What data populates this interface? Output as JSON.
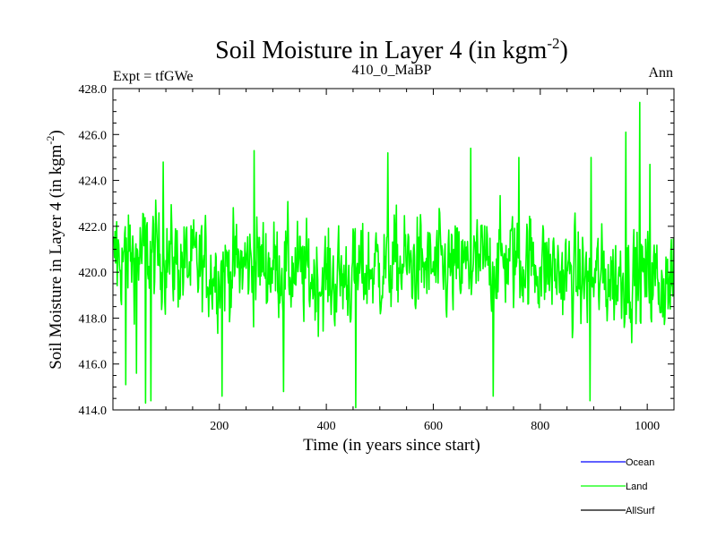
{
  "chart_data": {
    "type": "line",
    "title": "Soil Moisture in Layer 4 (in kgm",
    "title_sup": "-2",
    "title_end": ")",
    "subtitle_left": "Expt = tfGWe",
    "subtitle_center": "410_0_MaBP",
    "subtitle_right": "Ann",
    "xlabel": "Time (in years since start)",
    "ylabel": "Soil Moisture in Layer 4 (in kgm",
    "ylabel_sup": "-2",
    "ylabel_end": ")",
    "xlim": [
      1,
      1050
    ],
    "ylim": [
      414.0,
      428.0
    ],
    "xticks": [
      200,
      400,
      600,
      800,
      1000
    ],
    "yticks": [
      "414.0",
      "416.0",
      "418.0",
      "420.0",
      "422.0",
      "424.0",
      "426.0",
      "428.0"
    ],
    "legend": [
      {
        "name": "Ocean",
        "color": "#0000ff"
      },
      {
        "name": "Land",
        "color": "#00ff00"
      },
      {
        "name": "AllSurf",
        "color": "#000000"
      }
    ],
    "series": [
      {
        "name": "Land",
        "color": "#00ff00",
        "n_points": 1050,
        "mean": 420.0,
        "noise_amplitude": 1.8,
        "extremes": [
          {
            "x": 3,
            "y": 421.5
          },
          {
            "x": 8,
            "y": 422.2
          },
          {
            "x": 25,
            "y": 415.1
          },
          {
            "x": 45,
            "y": 415.6
          },
          {
            "x": 62,
            "y": 414.3
          },
          {
            "x": 72,
            "y": 414.4
          },
          {
            "x": 95,
            "y": 424.8
          },
          {
            "x": 205,
            "y": 414.6
          },
          {
            "x": 265,
            "y": 425.3
          },
          {
            "x": 320,
            "y": 414.8
          },
          {
            "x": 455,
            "y": 414.1
          },
          {
            "x": 515,
            "y": 425.2
          },
          {
            "x": 670,
            "y": 425.4
          },
          {
            "x": 712,
            "y": 414.6
          },
          {
            "x": 760,
            "y": 425.0
          },
          {
            "x": 893,
            "y": 414.4
          },
          {
            "x": 895,
            "y": 425.0
          },
          {
            "x": 960,
            "y": 426.1
          },
          {
            "x": 986,
            "y": 427.4
          },
          {
            "x": 1005,
            "y": 424.7
          },
          {
            "x": 1050,
            "y": 421.2
          }
        ]
      }
    ]
  }
}
